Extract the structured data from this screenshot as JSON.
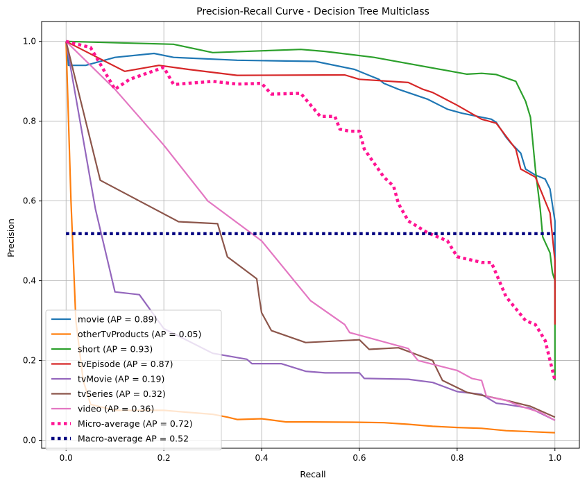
{
  "chart_data": {
    "type": "line",
    "title": "Precision-Recall Curve - Decision Tree Multiclass",
    "xlabel": "Recall",
    "ylabel": "Precision",
    "xlim": [
      -0.05,
      1.05
    ],
    "ylim": [
      -0.02,
      1.05
    ],
    "xticks": [
      "0.0",
      "0.2",
      "0.4",
      "0.6",
      "0.8",
      "1.0"
    ],
    "yticks": [
      "0.0",
      "0.2",
      "0.4",
      "0.6",
      "0.8",
      "1.0"
    ],
    "grid": true,
    "legend_position": "lower-left",
    "series": [
      {
        "name": "movie (AP = 0.89)",
        "color": "#1f77b4",
        "style": "solid",
        "points": [
          [
            0,
            1.0
          ],
          [
            0.005,
            0.94
          ],
          [
            0.04,
            0.94
          ],
          [
            0.1,
            0.96
          ],
          [
            0.18,
            0.97
          ],
          [
            0.22,
            0.96
          ],
          [
            0.35,
            0.953
          ],
          [
            0.45,
            0.951
          ],
          [
            0.51,
            0.95
          ],
          [
            0.59,
            0.93
          ],
          [
            0.62,
            0.915
          ],
          [
            0.64,
            0.905
          ],
          [
            0.65,
            0.895
          ],
          [
            0.68,
            0.88
          ],
          [
            0.74,
            0.855
          ],
          [
            0.78,
            0.83
          ],
          [
            0.81,
            0.82
          ],
          [
            0.83,
            0.815
          ],
          [
            0.87,
            0.805
          ],
          [
            0.88,
            0.797
          ],
          [
            0.9,
            0.76
          ],
          [
            0.91,
            0.745
          ],
          [
            0.93,
            0.72
          ],
          [
            0.94,
            0.68
          ],
          [
            0.96,
            0.665
          ],
          [
            0.98,
            0.655
          ],
          [
            0.99,
            0.63
          ],
          [
            0.995,
            0.59
          ],
          [
            1.0,
            0.55
          ],
          [
            1.0,
            0.38
          ]
        ]
      },
      {
        "name": "otherTvProducts (AP = 0.05)",
        "color": "#ff7f0e",
        "style": "solid",
        "points": [
          [
            0,
            1.0
          ],
          [
            0.01,
            0.6
          ],
          [
            0.02,
            0.3
          ],
          [
            0.035,
            0.15
          ],
          [
            0.05,
            0.09
          ],
          [
            0.1,
            0.075
          ],
          [
            0.2,
            0.075
          ],
          [
            0.3,
            0.065
          ],
          [
            0.33,
            0.058
          ],
          [
            0.35,
            0.052
          ],
          [
            0.4,
            0.054
          ],
          [
            0.45,
            0.046
          ],
          [
            0.5,
            0.046
          ],
          [
            0.6,
            0.045
          ],
          [
            0.65,
            0.044
          ],
          [
            0.7,
            0.04
          ],
          [
            0.75,
            0.035
          ],
          [
            0.8,
            0.032
          ],
          [
            0.85,
            0.03
          ],
          [
            0.9,
            0.024
          ],
          [
            1.0,
            0.019
          ]
        ]
      },
      {
        "name": "short (AP = 0.93)",
        "color": "#2ca02c",
        "style": "solid",
        "points": [
          [
            0,
            1.0
          ],
          [
            0.22,
            0.993
          ],
          [
            0.3,
            0.972
          ],
          [
            0.48,
            0.98
          ],
          [
            0.53,
            0.975
          ],
          [
            0.63,
            0.96
          ],
          [
            0.82,
            0.918
          ],
          [
            0.85,
            0.92
          ],
          [
            0.88,
            0.917
          ],
          [
            0.92,
            0.9
          ],
          [
            0.94,
            0.85
          ],
          [
            0.95,
            0.81
          ],
          [
            0.96,
            0.68
          ],
          [
            0.97,
            0.58
          ],
          [
            0.975,
            0.51
          ],
          [
            0.99,
            0.47
          ],
          [
            0.995,
            0.42
          ],
          [
            1.0,
            0.4
          ],
          [
            1.0,
            0.15
          ]
        ]
      },
      {
        "name": "tvEpisode (AP = 0.87)",
        "color": "#d62728",
        "style": "solid",
        "points": [
          [
            0,
            1.0
          ],
          [
            0.08,
            0.95
          ],
          [
            0.12,
            0.925
          ],
          [
            0.19,
            0.94
          ],
          [
            0.25,
            0.93
          ],
          [
            0.35,
            0.915
          ],
          [
            0.57,
            0.916
          ],
          [
            0.6,
            0.905
          ],
          [
            0.7,
            0.897
          ],
          [
            0.73,
            0.88
          ],
          [
            0.75,
            0.872
          ],
          [
            0.8,
            0.84
          ],
          [
            0.85,
            0.805
          ],
          [
            0.88,
            0.795
          ],
          [
            0.92,
            0.73
          ],
          [
            0.93,
            0.68
          ],
          [
            0.96,
            0.66
          ],
          [
            0.97,
            0.63
          ],
          [
            0.99,
            0.57
          ],
          [
            1.0,
            0.45
          ],
          [
            1.0,
            0.29
          ]
        ]
      },
      {
        "name": "tvMovie (AP = 0.19)",
        "color": "#9467bd",
        "style": "solid",
        "points": [
          [
            0,
            1.0
          ],
          [
            0.06,
            0.58
          ],
          [
            0.1,
            0.372
          ],
          [
            0.15,
            0.365
          ],
          [
            0.2,
            0.28
          ],
          [
            0.3,
            0.218
          ],
          [
            0.37,
            0.203
          ],
          [
            0.38,
            0.192
          ],
          [
            0.44,
            0.192
          ],
          [
            0.49,
            0.173
          ],
          [
            0.53,
            0.169
          ],
          [
            0.6,
            0.169
          ],
          [
            0.61,
            0.155
          ],
          [
            0.7,
            0.153
          ],
          [
            0.75,
            0.145
          ],
          [
            0.8,
            0.122
          ],
          [
            0.85,
            0.115
          ],
          [
            0.88,
            0.093
          ],
          [
            0.9,
            0.09
          ],
          [
            0.95,
            0.08
          ],
          [
            1.0,
            0.05
          ]
        ]
      },
      {
        "name": "tvSeries (AP = 0.32)",
        "color": "#8c564b",
        "style": "solid",
        "points": [
          [
            0,
            1.0
          ],
          [
            0.07,
            0.652
          ],
          [
            0.23,
            0.548
          ],
          [
            0.31,
            0.543
          ],
          [
            0.33,
            0.46
          ],
          [
            0.39,
            0.405
          ],
          [
            0.395,
            0.36
          ],
          [
            0.4,
            0.32
          ],
          [
            0.42,
            0.275
          ],
          [
            0.49,
            0.245
          ],
          [
            0.6,
            0.252
          ],
          [
            0.62,
            0.228
          ],
          [
            0.68,
            0.232
          ],
          [
            0.75,
            0.2
          ],
          [
            0.77,
            0.15
          ],
          [
            0.82,
            0.12
          ],
          [
            0.87,
            0.108
          ],
          [
            0.9,
            0.1
          ],
          [
            0.95,
            0.085
          ],
          [
            1.0,
            0.058
          ]
        ]
      },
      {
        "name": "video (AP = 0.36)",
        "color": "#e377c2",
        "style": "solid",
        "points": [
          [
            0,
            1.0
          ],
          [
            0.1,
            0.88
          ],
          [
            0.2,
            0.74
          ],
          [
            0.29,
            0.6
          ],
          [
            0.4,
            0.5
          ],
          [
            0.5,
            0.35
          ],
          [
            0.57,
            0.29
          ],
          [
            0.58,
            0.27
          ],
          [
            0.7,
            0.23
          ],
          [
            0.72,
            0.2
          ],
          [
            0.8,
            0.175
          ],
          [
            0.83,
            0.155
          ],
          [
            0.85,
            0.15
          ],
          [
            0.86,
            0.11
          ],
          [
            0.9,
            0.1
          ],
          [
            0.93,
            0.085
          ],
          [
            0.97,
            0.07
          ],
          [
            1.0,
            0.05
          ]
        ]
      },
      {
        "name": "Micro-average (AP = 0.72)",
        "color": "#ff1493",
        "style": "dotted",
        "points": [
          [
            0,
            1.0
          ],
          [
            0.05,
            0.985
          ],
          [
            0.1,
            0.88
          ],
          [
            0.13,
            0.905
          ],
          [
            0.2,
            0.935
          ],
          [
            0.22,
            0.892
          ],
          [
            0.3,
            0.9
          ],
          [
            0.35,
            0.893
          ],
          [
            0.4,
            0.895
          ],
          [
            0.42,
            0.868
          ],
          [
            0.48,
            0.87
          ],
          [
            0.52,
            0.812
          ],
          [
            0.55,
            0.812
          ],
          [
            0.56,
            0.78
          ],
          [
            0.58,
            0.775
          ],
          [
            0.6,
            0.775
          ],
          [
            0.61,
            0.73
          ],
          [
            0.65,
            0.66
          ],
          [
            0.67,
            0.637
          ],
          [
            0.68,
            0.593
          ],
          [
            0.7,
            0.55
          ],
          [
            0.74,
            0.52
          ],
          [
            0.78,
            0.5
          ],
          [
            0.8,
            0.46
          ],
          [
            0.85,
            0.446
          ],
          [
            0.87,
            0.446
          ],
          [
            0.9,
            0.36
          ],
          [
            0.94,
            0.3
          ],
          [
            0.96,
            0.29
          ],
          [
            0.98,
            0.25
          ],
          [
            1.0,
            0.15
          ]
        ]
      },
      {
        "name": "Macro-average AP = 0.52",
        "color": "#000080",
        "style": "dotted",
        "points": [
          [
            0,
            0.518
          ],
          [
            1.0,
            0.518
          ]
        ]
      }
    ]
  }
}
